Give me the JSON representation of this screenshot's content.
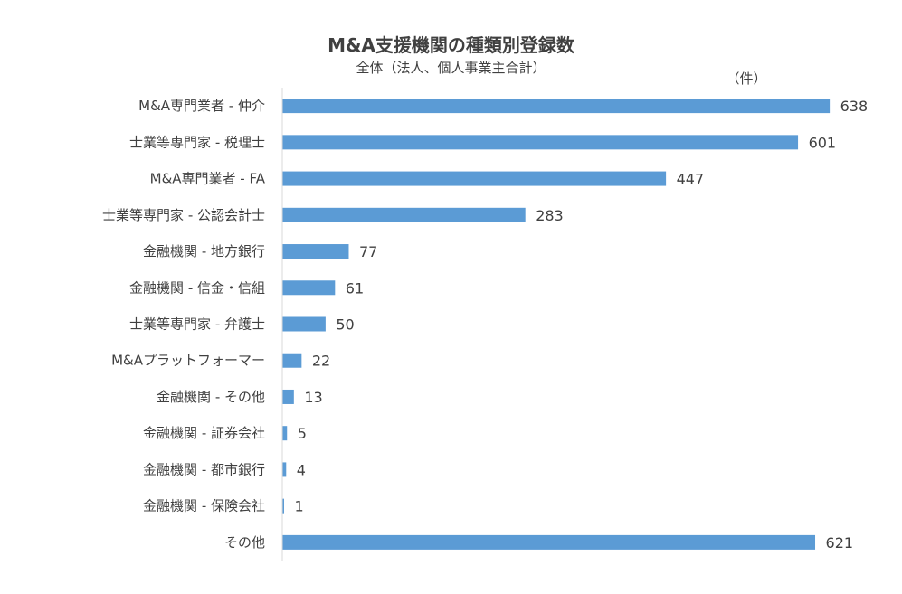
{
  "chart_data": {
    "type": "bar",
    "orientation": "horizontal",
    "title": "M&A支援機関の種類別登録数",
    "subtitle": "全体（法人、個人事業主合計）",
    "unit": "（件）",
    "categories": [
      "M&A専門業者 - 仲介",
      "士業等専門家 - 税理士",
      "M&A専門業者 - FA",
      "士業等専門家 - 公認会計士",
      "金融機関 - 地方銀行",
      "金融機関 - 信金・信組",
      "士業等専門家 - 弁護士",
      "M&Aプラットフォーマー",
      "金融機関 - その他",
      "金融機関 - 証券会社",
      "金融機関 - 都市銀行",
      "金融機関 - 保険会社",
      "その他"
    ],
    "values": [
      638,
      601,
      447,
      283,
      77,
      61,
      50,
      22,
      13,
      5,
      4,
      1,
      621
    ],
    "xlim": [
      0,
      650
    ],
    "grid": false,
    "bar_color": "#5B9BD5",
    "text_color": "#404040",
    "axis_color": "#D9D9D9"
  }
}
